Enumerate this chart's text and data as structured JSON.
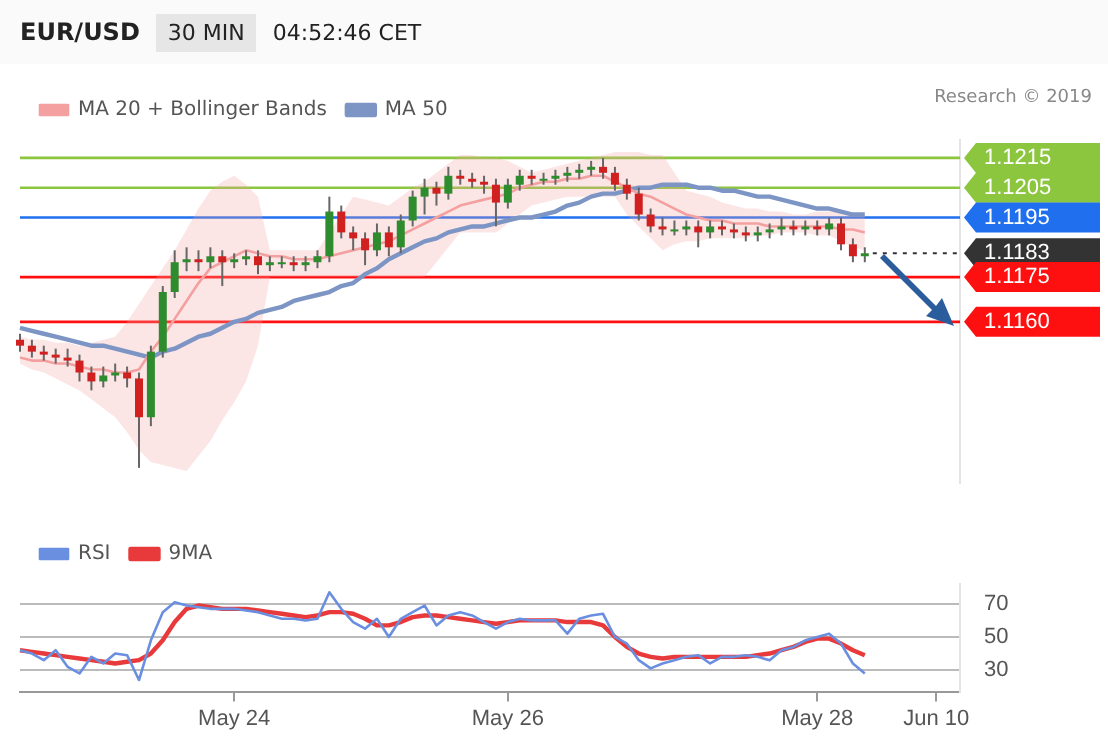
{
  "chart_data": [
    {
      "type": "candlestick",
      "title": "EUR/USD",
      "subtitle": "30 MIN",
      "annotations": [
        "04:52:46 CET",
        "Research © 2019"
      ],
      "categories": [
        null,
        null,
        null,
        null,
        null,
        null,
        null,
        null,
        null,
        null,
        null,
        null,
        null,
        null,
        null,
        null,
        null,
        null,
        null,
        null,
        null,
        null,
        null,
        null,
        null,
        null,
        null,
        null,
        null,
        null,
        null,
        null,
        null,
        null,
        null,
        null,
        null,
        null,
        null,
        null,
        null,
        null,
        null,
        null,
        null,
        null,
        null,
        null,
        null,
        null,
        null,
        null,
        null,
        null,
        null,
        null,
        null,
        null,
        null,
        null,
        null,
        null,
        null,
        null,
        null,
        null,
        null,
        null,
        null,
        null,
        null,
        null,
        null,
        null,
        null,
        null,
        null,
        null,
        null,
        null
      ],
      "ohlc": [
        [
          1.1154,
          1.1156,
          1.115,
          1.1152
        ],
        [
          1.1152,
          1.1154,
          1.1148,
          1.115
        ],
        [
          1.115,
          1.1152,
          1.1147,
          1.1149
        ],
        [
          1.1149,
          1.1151,
          1.1146,
          1.1148
        ],
        [
          1.1148,
          1.1151,
          1.1145,
          1.1147
        ],
        [
          1.1147,
          1.1149,
          1.114,
          1.1143
        ],
        [
          1.1143,
          1.1145,
          1.1137,
          1.114
        ],
        [
          1.114,
          1.1145,
          1.1138,
          1.1142
        ],
        [
          1.1142,
          1.1146,
          1.114,
          1.1143
        ],
        [
          1.1143,
          1.1145,
          1.1138,
          1.1141
        ],
        [
          1.1141,
          1.1143,
          1.1111,
          1.1128
        ],
        [
          1.1128,
          1.1152,
          1.1125,
          1.115
        ],
        [
          1.115,
          1.1172,
          1.1148,
          1.117
        ],
        [
          1.117,
          1.1184,
          1.1168,
          1.118
        ],
        [
          1.118,
          1.1185,
          1.1177,
          1.1181
        ],
        [
          1.1181,
          1.1184,
          1.1177,
          1.118
        ],
        [
          1.118,
          1.1185,
          1.1178,
          1.1182
        ],
        [
          1.1182,
          1.1184,
          1.1172,
          1.118
        ],
        [
          1.118,
          1.1183,
          1.1178,
          1.1181
        ],
        [
          1.1181,
          1.1184,
          1.1179,
          1.1182
        ],
        [
          1.1182,
          1.1184,
          1.1176,
          1.1179
        ],
        [
          1.1179,
          1.1182,
          1.1177,
          1.118
        ],
        [
          1.118,
          1.1182,
          1.1178,
          1.118
        ],
        [
          1.118,
          1.1182,
          1.1177,
          1.1179
        ],
        [
          1.1179,
          1.1182,
          1.1177,
          1.118
        ],
        [
          1.118,
          1.1184,
          1.1178,
          1.1182
        ],
        [
          1.1182,
          1.1202,
          1.118,
          1.1197
        ],
        [
          1.1197,
          1.1199,
          1.1188,
          1.119
        ],
        [
          1.119,
          1.1192,
          1.1184,
          1.1188
        ],
        [
          1.1188,
          1.119,
          1.1179,
          1.1184
        ],
        [
          1.1184,
          1.1193,
          1.1182,
          1.119
        ],
        [
          1.119,
          1.1192,
          1.1182,
          1.1185
        ],
        [
          1.1185,
          1.1196,
          1.1183,
          1.1194
        ],
        [
          1.1194,
          1.1204,
          1.1192,
          1.1202
        ],
        [
          1.1202,
          1.1208,
          1.1196,
          1.1205
        ],
        [
          1.1205,
          1.1207,
          1.1199,
          1.1203
        ],
        [
          1.1203,
          1.1212,
          1.1201,
          1.1209
        ],
        [
          1.1209,
          1.1211,
          1.1206,
          1.1208
        ],
        [
          1.1208,
          1.121,
          1.1205,
          1.1207
        ],
        [
          1.1207,
          1.1209,
          1.1203,
          1.1206
        ],
        [
          1.1206,
          1.1208,
          1.1192,
          1.12
        ],
        [
          1.12,
          1.1208,
          1.1198,
          1.1206
        ],
        [
          1.1206,
          1.1211,
          1.1204,
          1.1209
        ],
        [
          1.1209,
          1.1211,
          1.1206,
          1.1208
        ],
        [
          1.1208,
          1.121,
          1.1206,
          1.1208
        ],
        [
          1.1208,
          1.1211,
          1.1206,
          1.1209
        ],
        [
          1.1209,
          1.1212,
          1.1207,
          1.121
        ],
        [
          1.121,
          1.1213,
          1.1208,
          1.1211
        ],
        [
          1.1211,
          1.1214,
          1.1209,
          1.1212
        ],
        [
          1.1212,
          1.1215,
          1.1208,
          1.121
        ],
        [
          1.121,
          1.1212,
          1.1204,
          1.1206
        ],
        [
          1.1206,
          1.1208,
          1.1201,
          1.1203
        ],
        [
          1.1203,
          1.1205,
          1.1194,
          1.1196
        ],
        [
          1.1196,
          1.1198,
          1.119,
          1.1192
        ],
        [
          1.1192,
          1.1195,
          1.1189,
          1.1191
        ],
        [
          1.1191,
          1.1194,
          1.1189,
          1.1191
        ],
        [
          1.1191,
          1.1194,
          1.1189,
          1.1192
        ],
        [
          1.1192,
          1.1194,
          1.1185,
          1.119
        ],
        [
          1.119,
          1.1194,
          1.1188,
          1.1192
        ],
        [
          1.1192,
          1.1194,
          1.1189,
          1.1191
        ],
        [
          1.1191,
          1.1193,
          1.1188,
          1.119
        ],
        [
          1.119,
          1.1192,
          1.1187,
          1.1189
        ],
        [
          1.1189,
          1.1192,
          1.1187,
          1.119
        ],
        [
          1.119,
          1.1193,
          1.1188,
          1.1191
        ],
        [
          1.1191,
          1.1195,
          1.1189,
          1.1192
        ],
        [
          1.1192,
          1.1194,
          1.1189,
          1.1191
        ],
        [
          1.1191,
          1.1194,
          1.1189,
          1.1192
        ],
        [
          1.1192,
          1.1194,
          1.1189,
          1.1191
        ],
        [
          1.1191,
          1.1195,
          1.1189,
          1.1193
        ],
        [
          1.1193,
          1.1195,
          1.1184,
          1.1186
        ],
        [
          1.1186,
          1.1188,
          1.118,
          1.1182
        ],
        [
          1.1182,
          1.1185,
          1.118,
          1.1183
        ],
        null,
        null,
        null,
        null,
        null,
        null,
        null,
        null
      ],
      "series": [
        {
          "name": "MA 20 + Bollinger Bands",
          "type": "line",
          "color": "#f4a0a0",
          "values": [
            1.1148,
            1.1147,
            1.1147,
            1.1146,
            1.1146,
            1.1145,
            1.1144,
            1.1144,
            1.1143,
            1.1143,
            1.1144,
            1.115,
            1.1155,
            1.1161,
            1.1167,
            1.1173,
            1.1178,
            1.118,
            1.1182,
            1.1184,
            1.1183,
            1.1182,
            1.1182,
            1.1181,
            1.1181,
            1.1181,
            1.1182,
            1.1183,
            1.1184,
            1.1185,
            1.1186,
            1.1187,
            1.1189,
            1.1191,
            1.1193,
            1.1195,
            1.1197,
            1.1199,
            1.12,
            1.1201,
            1.1202,
            1.1203,
            1.1205,
            1.1206,
            1.1207,
            1.1207,
            1.1208,
            1.1208,
            1.1209,
            1.1209,
            1.1207,
            1.1205,
            1.1203,
            1.1202,
            1.12,
            1.1198,
            1.1196,
            1.1195,
            1.1194,
            1.1194,
            1.1193,
            1.1193,
            1.1193,
            1.1192,
            1.1192,
            1.1192,
            1.1192,
            1.1192,
            1.1192,
            1.1191,
            1.1191,
            1.119,
            null,
            null,
            null,
            null,
            null,
            null,
            null,
            null
          ],
          "lower": [
            1.1146,
            1.1144,
            1.1143,
            1.1141,
            1.1139,
            1.1137,
            1.1134,
            1.1131,
            1.1128,
            1.1123,
            1.1117,
            1.1113,
            1.1112,
            1.1111,
            1.111,
            1.1115,
            1.112,
            1.1127,
            1.1133,
            1.114,
            1.1152,
            1.1175,
            1.1175,
            1.1175,
            1.1175,
            1.1175,
            1.1175,
            1.1175,
            1.1175,
            1.1175,
            1.1175,
            1.1175,
            1.1175,
            1.1175,
            1.1175,
            1.118,
            1.1185,
            1.119,
            1.119,
            1.119,
            1.119,
            1.1193,
            1.1196,
            1.1199,
            1.12,
            1.1201,
            1.1202,
            1.1202,
            1.1202,
            1.1202,
            1.1202,
            1.1196,
            1.1192,
            1.1188,
            1.1184,
            1.1186,
            1.1187,
            1.1187,
            1.1188,
            1.1188,
            1.1188,
            1.1188,
            1.1189,
            1.1189,
            1.119,
            1.119,
            1.119,
            1.1189,
            1.1189,
            1.1187,
            1.1185,
            1.1184,
            null,
            null,
            null,
            null,
            null,
            null,
            null,
            null
          ],
          "upper": [
            1.1155,
            1.1154,
            1.1154,
            1.1153,
            1.1153,
            1.1152,
            1.1153,
            1.1154,
            1.1155,
            1.116,
            1.1166,
            1.1172,
            1.1178,
            1.1184,
            1.1191,
            1.1198,
            1.1204,
            1.1207,
            1.1209,
            1.1206,
            1.1202,
            1.1184,
            1.1184,
            1.1184,
            1.1184,
            1.1184,
            1.119,
            1.1196,
            1.1202,
            1.1201,
            1.12,
            1.1199,
            1.1202,
            1.1205,
            1.1207,
            1.121,
            1.1213,
            1.1216,
            1.1216,
            1.1215,
            1.1215,
            1.1214,
            1.1212,
            1.121,
            1.1211,
            1.1212,
            1.1213,
            1.1214,
            1.1215,
            1.1216,
            1.1217,
            1.1217,
            1.1217,
            1.1216,
            1.1216,
            1.121,
            1.1204,
            1.1203,
            1.1202,
            1.12,
            1.1199,
            1.1198,
            1.1198,
            1.1197,
            1.1197,
            1.1196,
            1.1196,
            1.1197,
            1.1197,
            1.1197,
            1.1196,
            1.1196,
            null,
            null,
            null,
            null,
            null,
            null,
            null,
            null
          ]
        },
        {
          "name": "MA 50",
          "type": "line",
          "color": "#7d95c4",
          "values": [
            1.1158,
            1.1157,
            1.1156,
            1.1155,
            1.1154,
            1.1153,
            1.1152,
            1.1152,
            1.1151,
            1.115,
            1.1149,
            1.1148,
            1.115,
            1.1151,
            1.1153,
            1.1155,
            1.1156,
            1.1158,
            1.116,
            1.1161,
            1.1163,
            1.1164,
            1.1165,
            1.1167,
            1.1168,
            1.1169,
            1.117,
            1.1172,
            1.1173,
            1.1176,
            1.1178,
            1.1181,
            1.1183,
            1.1185,
            1.1187,
            1.1188,
            1.119,
            1.1191,
            1.1192,
            1.1192,
            1.1193,
            1.1194,
            1.1195,
            1.1195,
            1.1196,
            1.1197,
            1.1199,
            1.12,
            1.1202,
            1.1203,
            1.1203,
            1.1204,
            1.1205,
            1.1205,
            1.1206,
            1.1206,
            1.1206,
            1.1205,
            1.1205,
            1.1204,
            1.1204,
            1.1203,
            1.1202,
            1.1202,
            1.1201,
            1.12,
            1.1199,
            1.1198,
            1.1198,
            1.1197,
            1.1196,
            1.1196,
            null,
            null,
            null,
            null,
            null,
            null,
            null,
            null
          ]
        }
      ],
      "ylim": [
        1.1106,
        1.1221
      ],
      "yticks": [
        {
          "value": 1.116,
          "label": "1.1160"
        },
        1.1175,
        1.1183,
        1.1195,
        1.1205,
        1.1215
      ],
      "ref_lines": [
        {
          "axis": "y",
          "value": 1.1215,
          "color": "#8cc63f"
        },
        {
          "axis": "y",
          "value": 1.1205,
          "color": "#8cc63f"
        },
        {
          "axis": "y",
          "value": 1.1195,
          "color": "#1f6fef"
        },
        {
          "axis": "y",
          "value": 1.1183,
          "color": "#333333",
          "line_style": "dotted"
        },
        {
          "axis": "y",
          "value": 1.1175,
          "color": "#ff1010"
        },
        {
          "axis": "y",
          "value": 1.116,
          "color": "#ff1010"
        }
      ],
      "legend": "top left",
      "tick_labels": "y",
      "marker": "none"
    },
    {
      "type": "line",
      "categories": [
        null,
        null,
        null,
        null,
        null,
        null,
        null,
        null,
        null,
        null,
        null,
        null,
        null,
        null,
        null,
        null,
        null,
        null,
        "May 24",
        null,
        null,
        null,
        null,
        null,
        null,
        null,
        null,
        null,
        null,
        null,
        null,
        null,
        null,
        null,
        null,
        null,
        null,
        null,
        null,
        null,
        null,
        "May 26",
        null,
        null,
        null,
        null,
        null,
        null,
        null,
        null,
        null,
        null,
        null,
        null,
        null,
        null,
        null,
        null,
        null,
        null,
        null,
        null,
        null,
        null,
        null,
        null,
        null,
        "May 28",
        null,
        null,
        null,
        null,
        null,
        null,
        null,
        null,
        null,
        "Jun 10",
        null,
        null
      ],
      "series": [
        {
          "name": "RSI",
          "color": "#6a8fe0",
          "values": [
            42,
            40,
            36,
            42,
            32,
            28,
            38,
            34,
            40,
            39,
            24,
            48,
            65,
            71,
            69,
            68,
            67,
            67,
            67,
            66,
            65,
            63,
            61,
            61,
            60,
            61,
            77,
            67,
            59,
            55,
            61,
            50,
            61,
            65,
            69,
            57,
            63,
            65,
            63,
            59,
            55,
            59,
            61,
            60,
            60,
            60,
            52,
            61,
            63,
            64,
            50,
            46,
            36,
            31,
            34,
            36,
            38,
            39,
            34,
            38,
            38,
            39,
            38,
            36,
            42,
            44,
            48,
            50,
            52,
            46,
            34,
            28,
            null,
            null,
            null,
            null,
            null,
            null,
            null,
            null
          ]
        },
        {
          "name": "9MA",
          "color": "#e83a3a",
          "values": [
            42,
            41,
            40,
            39,
            38,
            37,
            36,
            35,
            34,
            35,
            36,
            40,
            48,
            59,
            67,
            69,
            68,
            67,
            67,
            67,
            66,
            65,
            64,
            63,
            62,
            63,
            65,
            65,
            64,
            61,
            57,
            57,
            59,
            62,
            63,
            63,
            62,
            61,
            60,
            59,
            58,
            59,
            60,
            60,
            60,
            60,
            59,
            59,
            59,
            57,
            50,
            44,
            40,
            38,
            37,
            38,
            38,
            38,
            38,
            38,
            38,
            38,
            39,
            40,
            42,
            44,
            47,
            49,
            49,
            46,
            42,
            39,
            null,
            null,
            null,
            null,
            null,
            null,
            null,
            null
          ]
        }
      ],
      "ylim": [
        17,
        82
      ],
      "yticks": [
        30,
        50,
        70
      ],
      "grid": "y",
      "legend": "top left",
      "marker": "none"
    }
  ]
}
